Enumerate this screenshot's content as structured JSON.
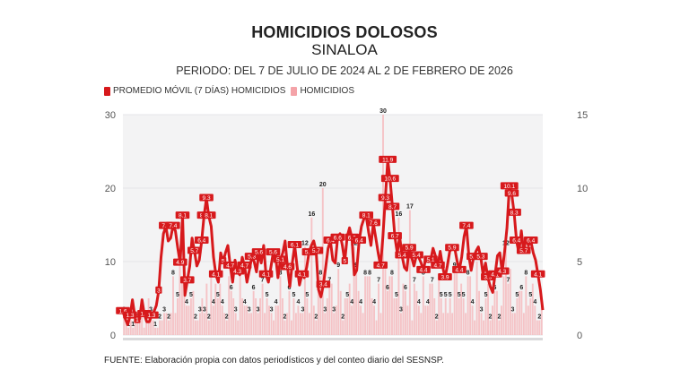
{
  "header": {
    "title": "HOMICIDIOS DOLOSOS",
    "subtitle": "SINALOA",
    "period": "PERIODO: DEL 7 DE JULIO DE 2024 AL 2 DE FEBRERO DE 2026"
  },
  "legend": [
    {
      "label": "PROMEDIO MÓVIL (7 DÍAS) HOMICIDIOS",
      "color": "#d7191c"
    },
    {
      "label": "HOMICIDIOS",
      "color": "#f4a3a8"
    }
  ],
  "source": "FUENTE: Elaboración propia con datos periodísticos y del conteo diario del SESNSP.",
  "colors": {
    "line": "#d7191c",
    "bar": "#f6b3b7",
    "plot_bg": "#f3f3f4",
    "axis_text": "#555555",
    "label_text": "#222222"
  },
  "chart_data": {
    "type": "bar+line",
    "title": "HOMICIDIOS DOLOSOS — SINALOA",
    "subtitle": "PERIODO: DEL 7 DE JULIO DE 2024 AL 2 DE FEBRERO DE 2026",
    "x_start": "2024-07-07",
    "x_end": "2026-02-02",
    "left_axis": {
      "label": "Homicidios",
      "ticks": [
        0,
        10,
        20,
        30
      ],
      "range": [
        0,
        30
      ]
    },
    "right_axis": {
      "label": "Promedio móvil (7 días)",
      "ticks": [
        0,
        5,
        10,
        15
      ],
      "range": [
        0,
        15
      ]
    },
    "grid": true,
    "legend_position": "top-left",
    "series": [
      {
        "name": "HOMICIDIOS",
        "type": "bar",
        "axis": "left",
        "values": [
          3,
          2,
          1,
          2,
          1,
          3,
          2,
          2,
          3,
          1,
          2,
          5,
          3,
          2,
          1,
          1,
          2,
          2,
          3,
          3,
          2,
          3,
          8,
          3,
          5,
          10,
          7,
          7,
          4,
          4,
          5,
          6,
          2,
          2,
          3,
          5,
          3,
          7,
          2,
          8,
          4,
          7,
          5,
          7,
          4,
          3,
          2,
          8,
          6,
          5,
          3,
          2,
          8,
          5,
          4,
          4,
          3,
          3,
          6,
          5,
          3,
          5,
          7,
          3,
          5,
          4,
          3,
          2,
          4,
          4,
          8,
          5,
          2,
          3,
          6,
          2,
          5,
          3,
          4,
          3,
          3,
          12,
          5,
          3,
          16,
          4,
          2,
          7,
          8,
          20,
          3,
          5,
          7,
          7,
          3,
          4,
          9,
          6,
          2,
          5,
          5,
          7,
          4,
          12,
          9,
          6,
          4,
          3,
          8,
          8,
          8,
          5,
          4,
          2,
          7,
          3,
          30,
          9,
          6,
          8,
          8,
          5,
          5,
          16,
          3,
          7,
          6,
          4,
          17,
          2,
          7,
          6,
          4,
          3,
          8,
          4,
          4,
          7,
          7,
          5,
          2,
          8,
          5,
          3,
          5,
          3,
          5,
          3,
          9,
          9,
          5,
          7,
          5,
          3,
          8,
          8,
          4,
          2,
          10,
          6,
          3,
          2,
          5,
          7,
          2,
          4,
          6,
          6,
          2,
          4,
          8,
          12,
          7,
          9,
          3,
          3,
          5,
          6,
          6,
          3,
          8,
          4,
          5,
          7,
          4,
          2,
          2,
          4
        ],
        "labeled_peaks": [
          20,
          16,
          30,
          16,
          17,
          12,
          12,
          10,
          10
        ]
      },
      {
        "name": "PROMEDIO MÓVIL (7 DÍAS) HOMICIDIOS",
        "type": "line",
        "axis": "right",
        "values": [
          1.6,
          1.1,
          0.7,
          1.3,
          2.4,
          1.3,
          1.0,
          1.1,
          2.4,
          1.4,
          0.9,
          0.9,
          1.3,
          1.6,
          2.0,
          3.0,
          5.3,
          6.9,
          7.4,
          6.4,
          6.6,
          7.4,
          7.1,
          5.9,
          4.9,
          8.1,
          2.7,
          3.7,
          4.7,
          6.6,
          5.7,
          4.7,
          5.1,
          6.4,
          8.1,
          9.3,
          8.1,
          7.4,
          5.3,
          4.1,
          3.6,
          5.6,
          5.0,
          5.6,
          6.1,
          4.7,
          3.6,
          5.1,
          4.3,
          4.1,
          5.3,
          4.7,
          3.6,
          4.4,
          5.3,
          5.0,
          4.3,
          5.6,
          4.9,
          6.1,
          4.1,
          3.6,
          4.6,
          5.6,
          5.4,
          3.9,
          5.1,
          5.6,
          6.4,
          4.6,
          3.3,
          4.9,
          6.1,
          4.7,
          3.4,
          4.1,
          3.9,
          4.6,
          5.6,
          6.1,
          6.4,
          5.7,
          3.1,
          2.6,
          3.4,
          4.6,
          5.9,
          6.4,
          5.1,
          4.9,
          6.6,
          6.9,
          6.1,
          5.0,
          6.7,
          7.3,
          6.6,
          4.1,
          4.4,
          6.4,
          7.4,
          7.9,
          8.1,
          7.0,
          6.1,
          7.6,
          6.6,
          5.6,
          4.7,
          6.7,
          9.3,
          11.9,
          10.6,
          8.7,
          6.7,
          5.6,
          6.7,
          5.4,
          4.6,
          4.4,
          5.9,
          5.3,
          4.7,
          5.4,
          5.3,
          4.9,
          4.4,
          5.3,
          5.0,
          5.1,
          5.9,
          5.4,
          4.7,
          5.7,
          4.7,
          3.9,
          4.7,
          5.7,
          5.9,
          6.0,
          5.1,
          4.4,
          5.3,
          6.7,
          7.4,
          5.4,
          4.4,
          5.3,
          5.7,
          6.0,
          5.3,
          4.1,
          4.9,
          3.9,
          3.3,
          2.9,
          4.1,
          5.4,
          5.6,
          4.3,
          5.7,
          7.3,
          10.1,
          9.6,
          8.3,
          6.4,
          5.6,
          7.1,
          5.7,
          6.6,
          6.1,
          6.4,
          5.6,
          5.1,
          4.1,
          3.1,
          1.7
        ],
        "labeled_peaks": [
          11.9,
          10.6,
          10.1,
          8.1,
          8.3,
          7.4,
          7.6
        ]
      }
    ]
  }
}
